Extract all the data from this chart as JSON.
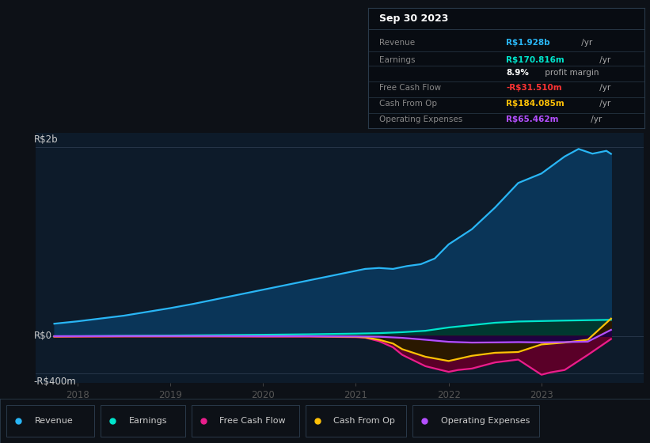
{
  "bg_color": "#0d1117",
  "plot_bg_color": "#0d1b2a",
  "grid_color": "#263548",
  "ylabel_top": "R$2b",
  "ylabel_zero": "R$0",
  "ylabel_bottom": "-R$400m",
  "xlabel_ticks": [
    "2018",
    "2019",
    "2020",
    "2021",
    "2022",
    "2023"
  ],
  "xlim": [
    2017.55,
    2024.1
  ],
  "ylim": [
    -500,
    2150
  ],
  "ytick_vals": [
    -400,
    0,
    2000
  ],
  "title_text": "Sep 30 2023",
  "info_box_bg": "#080c12",
  "info_box_border": "#2a3a4a",
  "series": {
    "revenue": {
      "line_color": "#29b6f6",
      "fill_color": "#0a3558",
      "label": "Revenue",
      "x": [
        2017.75,
        2018.0,
        2018.25,
        2018.5,
        2018.75,
        2019.0,
        2019.25,
        2019.5,
        2019.75,
        2020.0,
        2020.25,
        2020.5,
        2020.75,
        2021.0,
        2021.1,
        2021.25,
        2021.4,
        2021.55,
        2021.7,
        2021.85,
        2022.0,
        2022.25,
        2022.5,
        2022.75,
        2023.0,
        2023.25,
        2023.4,
        2023.55,
        2023.7,
        2023.75
      ],
      "y": [
        130,
        155,
        185,
        215,
        255,
        295,
        340,
        390,
        440,
        490,
        540,
        590,
        640,
        690,
        710,
        720,
        710,
        740,
        760,
        820,
        970,
        1130,
        1360,
        1620,
        1720,
        1900,
        1980,
        1930,
        1960,
        1928
      ]
    },
    "earnings": {
      "line_color": "#00e5cc",
      "fill_color": "#003830",
      "label": "Earnings",
      "x": [
        2017.75,
        2018.0,
        2018.5,
        2019.0,
        2019.5,
        2020.0,
        2020.5,
        2021.0,
        2021.25,
        2021.5,
        2021.75,
        2022.0,
        2022.25,
        2022.5,
        2022.75,
        2023.0,
        2023.25,
        2023.5,
        2023.75
      ],
      "y": [
        -3,
        -2,
        2,
        5,
        9,
        13,
        18,
        25,
        30,
        40,
        55,
        90,
        115,
        140,
        153,
        158,
        163,
        167,
        171
      ]
    },
    "free_cash_flow": {
      "line_color": "#e91e8c",
      "fill_color": "#5a0028",
      "label": "Free Cash Flow",
      "x": [
        2017.75,
        2018.0,
        2018.5,
        2019.0,
        2019.5,
        2020.0,
        2020.5,
        2021.0,
        2021.1,
        2021.25,
        2021.4,
        2021.5,
        2021.75,
        2022.0,
        2022.1,
        2022.25,
        2022.5,
        2022.75,
        2023.0,
        2023.1,
        2023.25,
        2023.5,
        2023.75
      ],
      "y": [
        -8,
        -7,
        -5,
        -5,
        -5,
        -7,
        -7,
        -12,
        -18,
        -55,
        -120,
        -200,
        -320,
        -380,
        -360,
        -345,
        -280,
        -250,
        -410,
        -385,
        -360,
        -200,
        -32
      ]
    },
    "cash_from_op": {
      "line_color": "#ffc107",
      "fill_color": "#2a1800",
      "label": "Cash From Op",
      "x": [
        2017.75,
        2018.0,
        2018.5,
        2019.0,
        2019.5,
        2020.0,
        2020.5,
        2021.0,
        2021.1,
        2021.25,
        2021.4,
        2021.5,
        2021.75,
        2022.0,
        2022.25,
        2022.5,
        2022.75,
        2023.0,
        2023.25,
        2023.5,
        2023.75
      ],
      "y": [
        -5,
        -4,
        -3,
        -3,
        -3,
        -3,
        -3,
        -8,
        -14,
        -40,
        -80,
        -140,
        -220,
        -265,
        -210,
        -178,
        -170,
        -90,
        -70,
        -40,
        184
      ]
    },
    "operating_expenses": {
      "line_color": "#b44fff",
      "fill_color": "#200040",
      "label": "Operating Expenses",
      "x": [
        2017.75,
        2018.0,
        2018.5,
        2019.0,
        2019.5,
        2020.0,
        2020.5,
        2021.0,
        2021.25,
        2021.5,
        2021.75,
        2022.0,
        2022.25,
        2022.5,
        2022.75,
        2023.0,
        2023.25,
        2023.5,
        2023.75
      ],
      "y": [
        -2,
        -2,
        -1,
        -1,
        -1,
        -2,
        -2,
        -5,
        -8,
        -20,
        -40,
        -62,
        -70,
        -68,
        -65,
        -68,
        -65,
        -60,
        65
      ]
    }
  },
  "legend": [
    {
      "label": "Revenue",
      "color": "#29b6f6"
    },
    {
      "label": "Earnings",
      "color": "#00e5cc"
    },
    {
      "label": "Free Cash Flow",
      "color": "#e91e8c"
    },
    {
      "label": "Cash From Op",
      "color": "#ffc107"
    },
    {
      "label": "Operating Expenses",
      "color": "#b44fff"
    }
  ]
}
